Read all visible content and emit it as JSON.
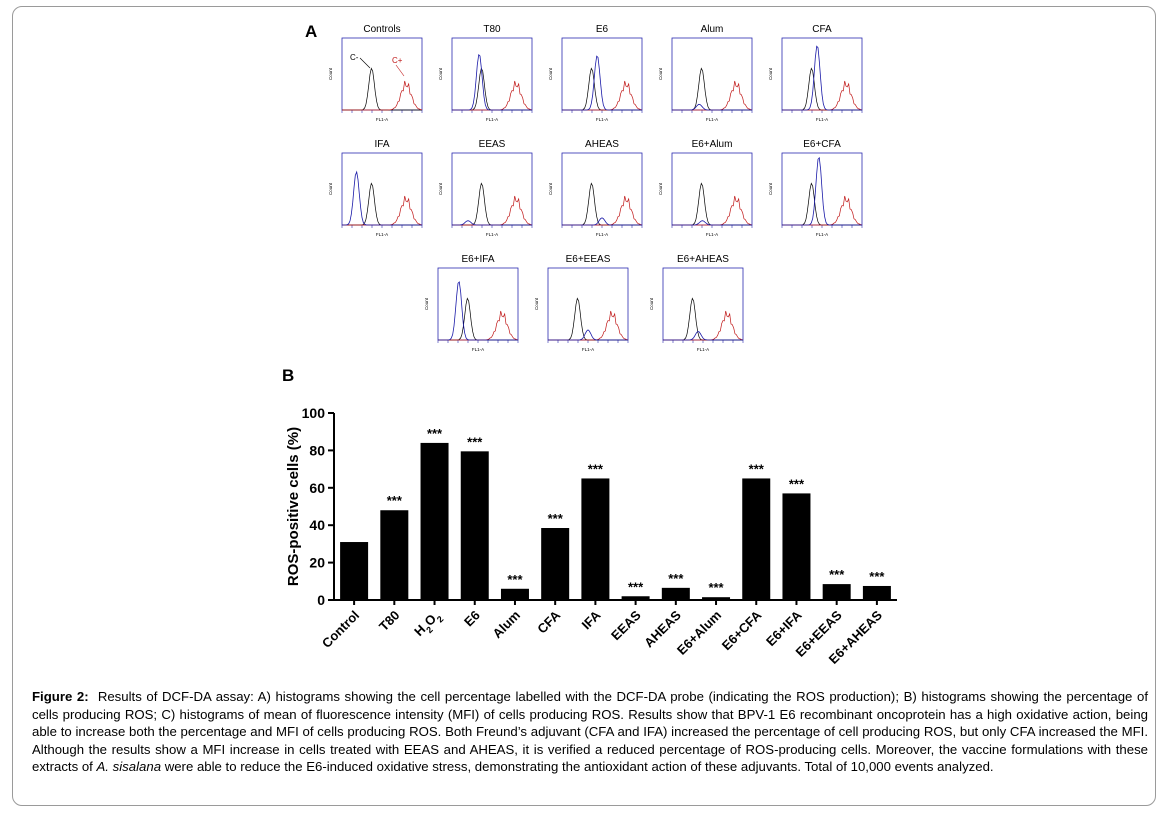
{
  "panel_a_label": "A",
  "panel_b_label": "B",
  "histograms": {
    "titles": [
      "Controls",
      "T80",
      "E6",
      "Alum",
      "CFA",
      "IFA",
      "EEAS",
      "AHEAS",
      "E6+Alum",
      "E6+CFA",
      "E6+IFA",
      "E6+EEAS",
      "E6+AHEAS"
    ],
    "ylabel": "Count",
    "xlabel": "FL1-A",
    "c_minus": "C-",
    "c_plus": "C+",
    "blue_peak_pos": [
      0,
      0.34,
      0.44,
      0.34,
      0.44,
      0.18,
      0.2,
      0.5,
      0.38,
      0.46,
      0.26,
      0.5,
      0.44
    ],
    "blue_peak_height": [
      0,
      0.78,
      0.76,
      0.08,
      0.9,
      0.74,
      0.06,
      0.1,
      0.06,
      0.95,
      0.82,
      0.14,
      0.12
    ],
    "colors": {
      "black": "#000000",
      "blue": "#1a1aa8",
      "red": "#c01818",
      "frame": "#2a2ab0"
    }
  },
  "chart_data": {
    "type": "bar",
    "categories": [
      "Control",
      "T80",
      "H2O2",
      "E6",
      "Alum",
      "CFA",
      "IFA",
      "EEAS",
      "AHEAS",
      "E6+Alum",
      "E6+CFA",
      "E6+IFA",
      "E6+EEAS",
      "E6+AHEAS"
    ],
    "values": [
      31,
      48,
      84,
      79.5,
      6,
      38.5,
      65,
      2,
      6.5,
      1.5,
      65,
      57,
      8.5,
      7.5
    ],
    "annotations": [
      "",
      "***",
      "***",
      "***",
      "***",
      "***",
      "***",
      "***",
      "***",
      "***",
      "***",
      "***",
      "***",
      "***"
    ],
    "ylabel": "ROS-positive cells (%)",
    "ylim": [
      0,
      100
    ],
    "yticks": [
      "0",
      "20",
      "40",
      "60",
      "80",
      "100"
    ],
    "bar_color": "#000000"
  },
  "caption": {
    "label": "Figure 2:",
    "text1": "Results of DCF-DA assay: A) histograms showing the cell percentage labelled with the DCF-DA probe (indicating the ROS production); B) histograms showing the percentage of cells producing ROS; C) histograms of mean of fluorescence intensity (MFI) of cells producing ROS. Results show that BPV-1 E6 recombinant oncoprotein has a high oxidative action, being able to increase both the percentage and MFI of cells producing ROS. Both Freund’s adjuvant (CFA and IFA) increased the percentage of cell producing ROS, but only CFA increased the MFI. Although the results show a MFI increase in cells treated with EEAS and AHEAS, it is verified a reduced percentage of ROS-producing cells. Moreover, the vaccine formulations with these extracts of",
    "italic": "A. sisalana",
    "text2": "were able to reduce the E6-induced oxidative stress, demonstrating the antioxidant action of these adjuvants. Total of 10,000 events analyzed."
  }
}
